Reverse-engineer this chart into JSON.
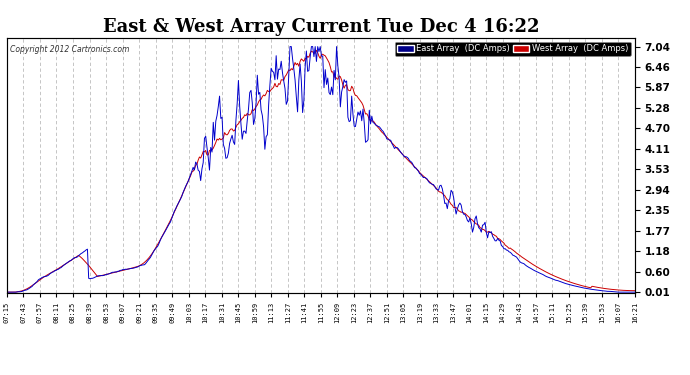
{
  "title": "East & West Array Current Tue Dec 4 16:22",
  "copyright": "Copyright 2012 Cartronics.com",
  "legend_east": "East Array  (DC Amps)",
  "legend_west": "West Array  (DC Amps)",
  "east_color": "#0000cc",
  "west_color": "#cc0000",
  "bg_color": "#ffffff",
  "plot_bg_color": "#ffffff",
  "grid_color": "#aaaaaa",
  "yticks": [
    0.01,
    0.6,
    1.18,
    1.77,
    2.35,
    2.94,
    3.53,
    4.11,
    4.7,
    5.28,
    5.87,
    6.46,
    7.04
  ],
  "xtick_labels": [
    "07:15",
    "07:43",
    "07:57",
    "08:11",
    "08:25",
    "08:39",
    "08:53",
    "09:07",
    "09:21",
    "09:35",
    "09:49",
    "10:03",
    "10:17",
    "10:31",
    "10:45",
    "10:59",
    "11:13",
    "11:27",
    "11:41",
    "11:55",
    "12:09",
    "12:23",
    "12:37",
    "12:51",
    "13:05",
    "13:19",
    "13:33",
    "13:47",
    "14:01",
    "14:15",
    "14:29",
    "14:43",
    "14:57",
    "15:11",
    "15:25",
    "15:39",
    "15:53",
    "16:07",
    "16:21"
  ],
  "ylim": [
    0.0,
    7.3
  ],
  "title_fontsize": 13,
  "linewidth": 0.7
}
